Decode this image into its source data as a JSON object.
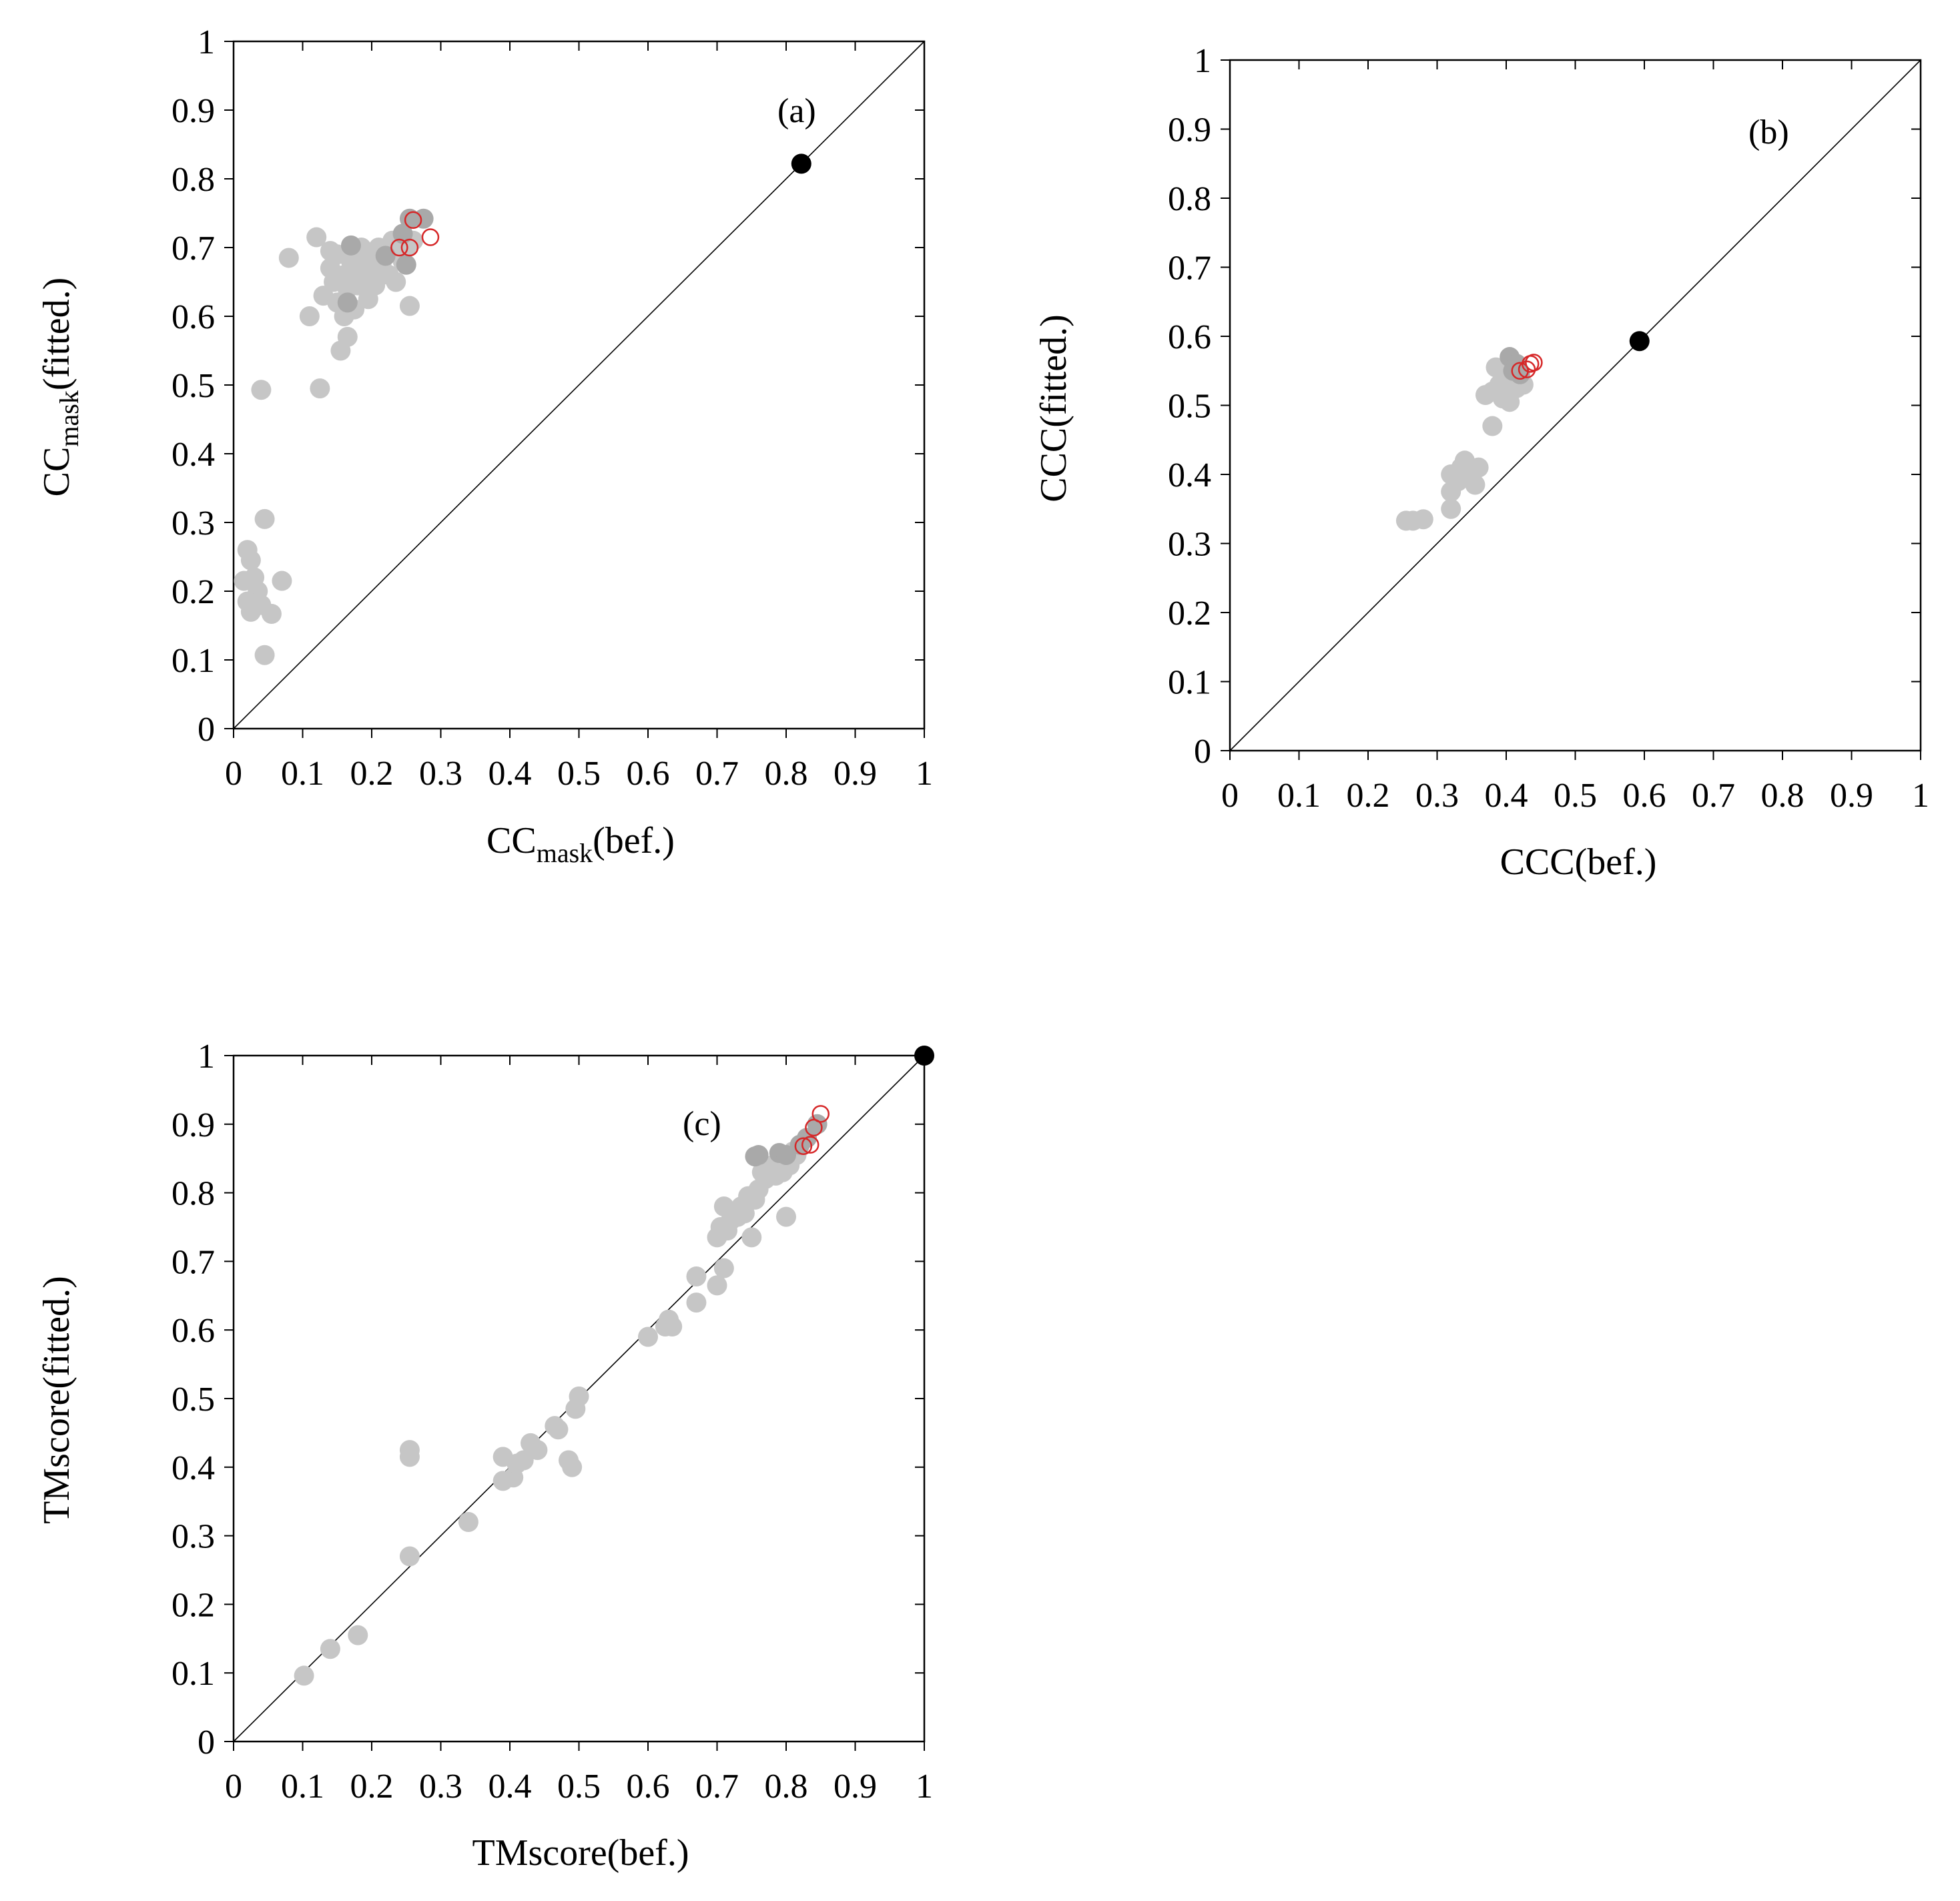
{
  "figure": {
    "description_panels": [
      "a",
      "b",
      "c"
    ]
  },
  "colors": {
    "point": "#c6c6c6",
    "point_dark": "#a9a9a9",
    "highlight_ring": "#d62728",
    "reference": "#000000",
    "axis": "#000000"
  },
  "chart_data": [
    {
      "id": "a",
      "type": "scatter",
      "panel_label": "(a)",
      "xlabel": {
        "main": "CC",
        "sub": "mask",
        "rest": "(bef.)"
      },
      "ylabel": {
        "main": "CC",
        "sub": "mask",
        "rest": "(fitted.)"
      },
      "xlim": [
        0,
        1
      ],
      "ylim": [
        0,
        1
      ],
      "ticks": [
        0,
        0.1,
        0.2,
        0.3,
        0.4,
        0.5,
        0.6,
        0.7,
        0.8,
        0.9,
        1
      ],
      "tick_labels": [
        "0",
        "0.1",
        "0.2",
        "0.3",
        "0.4",
        "0.5",
        "0.6",
        "0.7",
        "0.8",
        "0.9",
        "1"
      ],
      "diagonal": true,
      "points_light": [
        [
          0.08,
          0.685
        ],
        [
          0.11,
          0.6
        ],
        [
          0.12,
          0.715
        ],
        [
          0.125,
          0.495
        ],
        [
          0.13,
          0.63
        ],
        [
          0.14,
          0.67
        ],
        [
          0.145,
          0.65
        ],
        [
          0.15,
          0.69
        ],
        [
          0.15,
          0.62
        ],
        [
          0.155,
          0.55
        ],
        [
          0.16,
          0.66
        ],
        [
          0.165,
          0.57
        ],
        [
          0.165,
          0.64
        ],
        [
          0.17,
          0.68
        ],
        [
          0.175,
          0.61
        ],
        [
          0.18,
          0.665
        ],
        [
          0.185,
          0.7
        ],
        [
          0.19,
          0.655
        ],
        [
          0.195,
          0.625
        ],
        [
          0.2,
          0.66
        ],
        [
          0.205,
          0.645
        ],
        [
          0.21,
          0.7
        ],
        [
          0.215,
          0.67
        ],
        [
          0.22,
          0.69
        ],
        [
          0.225,
          0.66
        ],
        [
          0.23,
          0.71
        ],
        [
          0.235,
          0.65
        ],
        [
          0.24,
          0.69
        ],
        [
          0.245,
          0.68
        ],
        [
          0.25,
          0.7
        ],
        [
          0.255,
          0.615
        ],
        [
          0.26,
          0.71
        ],
        [
          0.14,
          0.695
        ],
        [
          0.16,
          0.6
        ],
        [
          0.17,
          0.655
        ],
        [
          0.18,
          0.645
        ],
        [
          0.19,
          0.675
        ],
        [
          0.2,
          0.69
        ],
        [
          0.04,
          0.493
        ],
        [
          0.045,
          0.305
        ],
        [
          0.02,
          0.26
        ],
        [
          0.025,
          0.245
        ],
        [
          0.015,
          0.215
        ],
        [
          0.03,
          0.22
        ],
        [
          0.035,
          0.2
        ],
        [
          0.02,
          0.185
        ],
        [
          0.025,
          0.17
        ],
        [
          0.04,
          0.18
        ],
        [
          0.055,
          0.167
        ],
        [
          0.07,
          0.215
        ],
        [
          0.045,
          0.107
        ]
      ],
      "points_dark": [
        [
          0.165,
          0.62
        ],
        [
          0.17,
          0.703
        ],
        [
          0.22,
          0.688
        ],
        [
          0.245,
          0.72
        ],
        [
          0.25,
          0.675
        ],
        [
          0.255,
          0.742
        ],
        [
          0.275,
          0.742
        ]
      ],
      "points_ring": [
        [
          0.24,
          0.7
        ],
        [
          0.255,
          0.7
        ],
        [
          0.26,
          0.74
        ],
        [
          0.285,
          0.715
        ]
      ],
      "reference_point": [
        0.822,
        0.822
      ]
    },
    {
      "id": "b",
      "type": "scatter",
      "panel_label": "(b)",
      "xlabel": {
        "main": "CCC(bef.)"
      },
      "ylabel": {
        "main": "CCC(fitted.)"
      },
      "xlim": [
        0,
        1
      ],
      "ylim": [
        0,
        1
      ],
      "ticks": [
        0,
        0.1,
        0.2,
        0.3,
        0.4,
        0.5,
        0.6,
        0.7,
        0.8,
        0.9,
        1
      ],
      "tick_labels": [
        "0",
        "0.1",
        "0.2",
        "0.3",
        "0.4",
        "0.5",
        "0.6",
        "0.7",
        "0.8",
        "0.9",
        "1"
      ],
      "diagonal": true,
      "points_light": [
        [
          0.255,
          0.333
        ],
        [
          0.265,
          0.333
        ],
        [
          0.28,
          0.335
        ],
        [
          0.32,
          0.35
        ],
        [
          0.32,
          0.375
        ],
        [
          0.32,
          0.4
        ],
        [
          0.33,
          0.39
        ],
        [
          0.335,
          0.41
        ],
        [
          0.34,
          0.42
        ],
        [
          0.345,
          0.395
        ],
        [
          0.35,
          0.405
        ],
        [
          0.355,
          0.385
        ],
        [
          0.36,
          0.41
        ],
        [
          0.37,
          0.515
        ],
        [
          0.38,
          0.52
        ],
        [
          0.38,
          0.47
        ],
        [
          0.385,
          0.555
        ],
        [
          0.39,
          0.53
        ],
        [
          0.395,
          0.51
        ],
        [
          0.4,
          0.54
        ],
        [
          0.405,
          0.505
        ],
        [
          0.41,
          0.55
        ],
        [
          0.415,
          0.525
        ],
        [
          0.42,
          0.54
        ],
        [
          0.425,
          0.53
        ]
      ],
      "points_dark": [
        [
          0.405,
          0.57
        ],
        [
          0.41,
          0.55
        ],
        [
          0.415,
          0.56
        ],
        [
          0.42,
          0.545
        ]
      ],
      "points_ring": [
        [
          0.42,
          0.55
        ],
        [
          0.43,
          0.552
        ],
        [
          0.435,
          0.56
        ],
        [
          0.44,
          0.562
        ]
      ],
      "reference_point": [
        0.593,
        0.593
      ]
    },
    {
      "id": "c",
      "type": "scatter",
      "panel_label": "(c)",
      "xlabel": {
        "main": "TMscore(bef.)"
      },
      "ylabel": {
        "main": "TMscore(fitted.)"
      },
      "xlim": [
        0,
        1
      ],
      "ylim": [
        0,
        1
      ],
      "ticks": [
        0,
        0.1,
        0.2,
        0.3,
        0.4,
        0.5,
        0.6,
        0.7,
        0.8,
        0.9,
        1
      ],
      "tick_labels": [
        "0",
        "0.1",
        "0.2",
        "0.3",
        "0.4",
        "0.5",
        "0.6",
        "0.7",
        "0.8",
        "0.9",
        "1"
      ],
      "diagonal": true,
      "points_light": [
        [
          0.102,
          0.096
        ],
        [
          0.14,
          0.135
        ],
        [
          0.18,
          0.155
        ],
        [
          0.255,
          0.425
        ],
        [
          0.255,
          0.415
        ],
        [
          0.255,
          0.27
        ],
        [
          0.34,
          0.32
        ],
        [
          0.39,
          0.38
        ],
        [
          0.39,
          0.415
        ],
        [
          0.405,
          0.385
        ],
        [
          0.41,
          0.405
        ],
        [
          0.42,
          0.41
        ],
        [
          0.43,
          0.435
        ],
        [
          0.44,
          0.425
        ],
        [
          0.465,
          0.46
        ],
        [
          0.47,
          0.455
        ],
        [
          0.485,
          0.41
        ],
        [
          0.49,
          0.4
        ],
        [
          0.495,
          0.485
        ],
        [
          0.5,
          0.503
        ],
        [
          0.6,
          0.59
        ],
        [
          0.625,
          0.605
        ],
        [
          0.63,
          0.615
        ],
        [
          0.635,
          0.605
        ],
        [
          0.67,
          0.64
        ],
        [
          0.67,
          0.678
        ],
        [
          0.7,
          0.665
        ],
        [
          0.7,
          0.735
        ],
        [
          0.705,
          0.75
        ],
        [
          0.71,
          0.69
        ],
        [
          0.715,
          0.745
        ],
        [
          0.72,
          0.76
        ],
        [
          0.71,
          0.78
        ],
        [
          0.73,
          0.765
        ],
        [
          0.735,
          0.78
        ],
        [
          0.74,
          0.77
        ],
        [
          0.745,
          0.795
        ],
        [
          0.75,
          0.735
        ],
        [
          0.755,
          0.79
        ],
        [
          0.76,
          0.805
        ],
        [
          0.765,
          0.83
        ],
        [
          0.77,
          0.82
        ],
        [
          0.78,
          0.84
        ],
        [
          0.785,
          0.825
        ],
        [
          0.79,
          0.845
        ],
        [
          0.795,
          0.83
        ],
        [
          0.8,
          0.85
        ],
        [
          0.805,
          0.84
        ],
        [
          0.8,
          0.765
        ],
        [
          0.81,
          0.86
        ],
        [
          0.815,
          0.855
        ]
      ],
      "points_dark": [
        [
          0.755,
          0.853
        ],
        [
          0.76,
          0.855
        ],
        [
          0.79,
          0.858
        ],
        [
          0.8,
          0.855
        ],
        [
          0.82,
          0.87
        ],
        [
          0.83,
          0.88
        ],
        [
          0.845,
          0.9
        ]
      ],
      "points_ring": [
        [
          0.825,
          0.868
        ],
        [
          0.835,
          0.87
        ],
        [
          0.84,
          0.895
        ],
        [
          0.85,
          0.915
        ]
      ],
      "reference_point": [
        1.0,
        1.0
      ]
    }
  ]
}
